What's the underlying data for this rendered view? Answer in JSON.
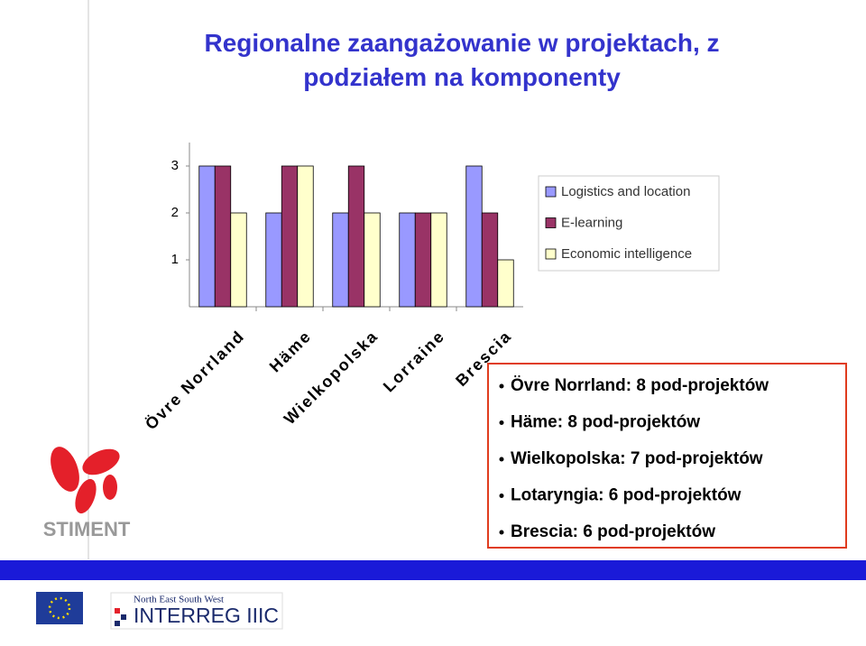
{
  "chart_data": {
    "type": "bar",
    "title": "Regionalne zaangażowanie w projektach, z podziałem na komponenty",
    "categories": [
      "Övre Norrland",
      "Häme",
      "Wielkopolska",
      "Lorraine",
      "Brescia"
    ],
    "series": [
      {
        "name": "Logistics and location",
        "color": "#9999ff",
        "values": [
          3,
          2,
          2,
          2,
          3
        ]
      },
      {
        "name": "E-learning",
        "color": "#993366",
        "values": [
          3,
          3,
          3,
          2,
          2
        ]
      },
      {
        "name": "Economic intelligence",
        "color": "#ffffcc",
        "values": [
          2,
          3,
          2,
          2,
          1
        ]
      }
    ],
    "ylim": [
      0,
      3.5
    ],
    "yticks": [
      1,
      2,
      3
    ],
    "grid": false,
    "legend": "right"
  },
  "bullets": [
    "Övre Norrland: 8 pod-projektów",
    "Häme: 8 pod-projektów",
    "Wielkopolska: 7 pod-projektów",
    "Lotaryngia: 6 pod-projektów",
    "Brescia: 6 pod-projektów"
  ],
  "logos": {
    "stiment": "STIMENT",
    "interreg_top": "North East South West",
    "interreg_main": "INTERREG IIIC"
  }
}
